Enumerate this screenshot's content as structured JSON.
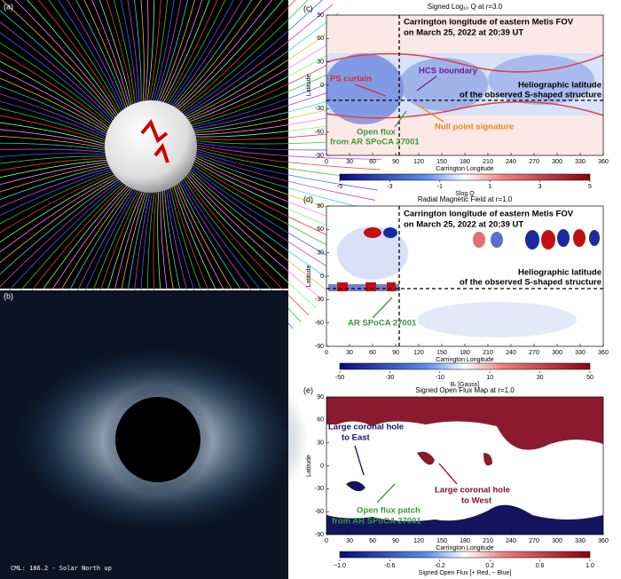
{
  "panel_a": {
    "label": "(a)"
  },
  "panel_b": {
    "label": "(b)",
    "caption": "CML: 186.2 - Solar North up"
  },
  "panel_c": {
    "label": "(c)",
    "title": "Signed Log₁₀ Q at r=3.0",
    "x_label": "Carrington Longitude",
    "y_label": "Latitude",
    "x_ticks": [
      0,
      30,
      60,
      90,
      120,
      150,
      180,
      210,
      240,
      270,
      300,
      330,
      360
    ],
    "y_ticks": [
      90,
      60,
      30,
      0,
      -30,
      -60,
      -90
    ],
    "colorbar_label": "Slog Q",
    "colorbar_ticks": [
      -5,
      -3,
      -1,
      1,
      3,
      5
    ],
    "annotations": [
      "Carrington longitude of eastern Metis FOV",
      "on March 25, 2022 at 20:39 UT",
      "HCS boundary",
      "PS curtain",
      "Heliographic latitude",
      "of the observed S-shaped structure",
      "Null point signature",
      "Open flux",
      "from AR SPoCA 27001"
    ]
  },
  "panel_d": {
    "label": "(d)",
    "title": "Radial Magnetic Field at r=1.0",
    "x_label": "Carrington Longitude",
    "y_label": "Latitude",
    "x_ticks": [
      0,
      30,
      60,
      90,
      120,
      150,
      180,
      210,
      240,
      270,
      300,
      330,
      360
    ],
    "y_ticks": [
      90,
      60,
      30,
      0,
      -30,
      -60,
      -90
    ],
    "colorbar_label": "Bᵣ [Gauss]",
    "colorbar_ticks": [
      -50,
      -30,
      -10,
      10,
      30,
      50
    ],
    "annotations": [
      "Carrington longitude of eastern Metis FOV",
      "on March 25, 2022 at 20:39 UT",
      "Heliographic latitude",
      "of the observed S-shaped structure",
      "AR SPoCA 27001"
    ]
  },
  "panel_e": {
    "label": "(e)",
    "title": "Signed Open Flux Map at r=1.0",
    "x_label": "Carrington Longitude",
    "y_label": "Latitude",
    "x_ticks": [
      0,
      30,
      60,
      90,
      120,
      150,
      180,
      210,
      240,
      270,
      300,
      330,
      360
    ],
    "y_ticks": [
      90,
      60,
      30,
      0,
      -30,
      -60,
      -90
    ],
    "colorbar_label": "Signed Open Flux [+ Red, − Blue]",
    "colorbar_ticks": [
      {
        "value": -1,
        "label": "−1.0"
      },
      -0.6,
      -0.2,
      0.2,
      0.6,
      {
        "value": 1,
        "label": "1.0"
      }
    ],
    "annotations": [
      "Large coronal hole",
      "to East",
      "Large coronal hole",
      "to West",
      "Open flux patch",
      "from AR SPoCA 27001"
    ]
  }
}
